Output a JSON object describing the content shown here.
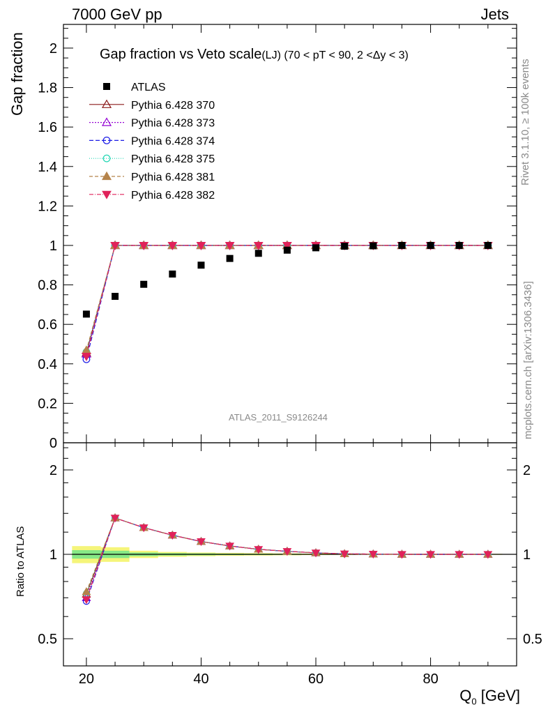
{
  "header": {
    "left": "7000 GeV pp",
    "right": "Jets"
  },
  "side_labels": {
    "rivet": "Rivet 3.1.10, ≥ 100k events",
    "mcplots": "mcplots.cern.ch [arXiv:1306.3436]"
  },
  "watermark": "ATLAS_2011_S9126244",
  "colors": {
    "ATLAS": "#000000",
    "p370": "#8b1a1a",
    "p373": "#9400d3",
    "p374": "#1a1ae6",
    "p375": "#20d6b3",
    "p381": "#b5834a",
    "p382": "#e0225a",
    "band_outer": "#f5f57a",
    "band_inner": "#86e886"
  },
  "chart_data": [
    {
      "type": "line",
      "title_main": "Gap fraction vs Veto scale",
      "title_sub": "(LJ) (70 < pT <  90, 2 <Δy < 3)",
      "ylabel": "Gap fraction",
      "ylim": [
        0,
        2.12
      ],
      "xlim": [
        16,
        95
      ],
      "yticks": [
        0,
        0.2,
        0.4,
        0.6,
        0.8,
        1,
        1.2,
        1.4,
        1.6,
        1.8,
        2
      ],
      "ytick_labels": [
        "0",
        "0.2",
        "0.4",
        "0.6",
        "0.8",
        "1",
        "1.2",
        "1.4",
        "1.6",
        "1.8",
        "2"
      ],
      "x": [
        20,
        25,
        30,
        35,
        40,
        45,
        50,
        55,
        60,
        65,
        70,
        75,
        80,
        85,
        90
      ],
      "data_series": {
        "name": "ATLAS",
        "values": [
          0.652,
          0.742,
          0.803,
          0.855,
          0.9,
          0.934,
          0.96,
          0.976,
          0.988,
          0.996,
          0.998,
          1.0,
          1.0,
          1.0,
          1.0
        ]
      },
      "series": [
        {
          "name": "Pythia 6.428 370",
          "marker": "triangle-open",
          "dash": "",
          "values": [
            0.455,
            1,
            1,
            1,
            1,
            1,
            1,
            1,
            1,
            1,
            1,
            1,
            1,
            1,
            1
          ]
        },
        {
          "name": "Pythia 6.428 373",
          "marker": "triangle-open",
          "dash": "2,2",
          "values": [
            0.45,
            1,
            1,
            1,
            1,
            1,
            1,
            1,
            1,
            1,
            1,
            1,
            1,
            1,
            1
          ]
        },
        {
          "name": "Pythia 6.428 374",
          "marker": "circle-open",
          "dash": "6,3",
          "values": [
            0.423,
            1,
            1,
            1,
            1,
            1,
            1,
            1,
            1,
            1,
            1,
            1,
            1,
            1,
            1
          ]
        },
        {
          "name": "Pythia 6.428 375",
          "marker": "circle-open",
          "dash": "1,2",
          "values": [
            0.46,
            1,
            1,
            1,
            1,
            1,
            1,
            1,
            1,
            1,
            1,
            1,
            1,
            1,
            1
          ]
        },
        {
          "name": "Pythia 6.428 381",
          "marker": "triangle-filled",
          "dash": "5,3",
          "values": [
            0.468,
            1,
            1,
            1,
            1,
            1,
            1,
            1,
            1,
            1,
            1,
            1,
            1,
            1,
            1
          ]
        },
        {
          "name": "Pythia 6.428 382",
          "marker": "triangle-down-filled",
          "dash": "6,2,1,2",
          "values": [
            0.438,
            1,
            1,
            1,
            1,
            1,
            1,
            1,
            1,
            1,
            1,
            1,
            1,
            1,
            1
          ]
        }
      ]
    },
    {
      "type": "line",
      "ylabel": "Ratio to ATLAS",
      "xlabel": "Q",
      "xlabel_sub": "0",
      "xlabel_unit": " [GeV]",
      "yscale": "log",
      "ylim": [
        0.4,
        2.5
      ],
      "xlim": [
        16,
        95
      ],
      "yticks": [
        0.5,
        1,
        2
      ],
      "ytick_labels": [
        "0.5",
        "1",
        "2"
      ],
      "xticks": [
        20,
        40,
        60,
        80
      ],
      "xtick_labels": [
        "20",
        "40",
        "60",
        "80"
      ],
      "x": [
        20,
        25,
        30,
        35,
        40,
        45,
        50,
        55,
        60,
        65,
        70,
        75,
        80,
        85,
        90
      ],
      "band": {
        "x_edges": [
          17.5,
          22.5,
          27.5,
          32.5,
          37.5,
          42.5,
          47.5,
          52.5,
          57.5,
          62.5,
          67.5,
          72.5,
          77.5,
          82.5,
          87.5,
          92.5
        ],
        "outer": [
          0.07,
          0.06,
          0.03,
          0.02,
          0.015,
          0.012,
          0.01,
          0.008,
          0.006,
          0.005,
          0.004,
          0.004,
          0.004,
          0.004,
          0.004
        ],
        "inner": [
          0.035,
          0.03,
          0.015,
          0.01,
          0.008,
          0.006,
          0.005,
          0.004,
          0.003,
          0.003,
          0.002,
          0.002,
          0.002,
          0.002,
          0.002
        ]
      },
      "series": [
        {
          "name": "Pythia 6.428 370",
          "values": [
            0.72,
            1.348,
            1.245,
            1.17,
            1.111,
            1.071,
            1.042,
            1.025,
            1.012,
            1.004,
            1.002,
            1.0,
            1.0,
            1.0,
            1.0
          ]
        },
        {
          "name": "Pythia 6.428 373",
          "values": [
            0.7,
            1.348,
            1.245,
            1.17,
            1.111,
            1.071,
            1.042,
            1.025,
            1.012,
            1.004,
            1.002,
            1.0,
            1.0,
            1.0,
            1.0
          ]
        },
        {
          "name": "Pythia 6.428 374",
          "values": [
            0.68,
            1.348,
            1.245,
            1.17,
            1.111,
            1.071,
            1.042,
            1.025,
            1.012,
            1.004,
            1.002,
            1.0,
            1.0,
            1.0,
            1.0
          ]
        },
        {
          "name": "Pythia 6.428 375",
          "values": [
            0.725,
            1.348,
            1.245,
            1.17,
            1.111,
            1.071,
            1.042,
            1.025,
            1.012,
            1.004,
            1.002,
            1.0,
            1.0,
            1.0,
            1.0
          ]
        },
        {
          "name": "Pythia 6.428 381",
          "values": [
            0.735,
            1.348,
            1.245,
            1.17,
            1.111,
            1.071,
            1.042,
            1.025,
            1.012,
            1.004,
            1.002,
            1.0,
            1.0,
            1.0,
            1.0
          ]
        },
        {
          "name": "Pythia 6.428 382",
          "values": [
            0.69,
            1.348,
            1.245,
            1.17,
            1.111,
            1.071,
            1.042,
            1.025,
            1.012,
            1.004,
            1.002,
            1.0,
            1.0,
            1.0,
            1.0
          ]
        }
      ]
    }
  ]
}
